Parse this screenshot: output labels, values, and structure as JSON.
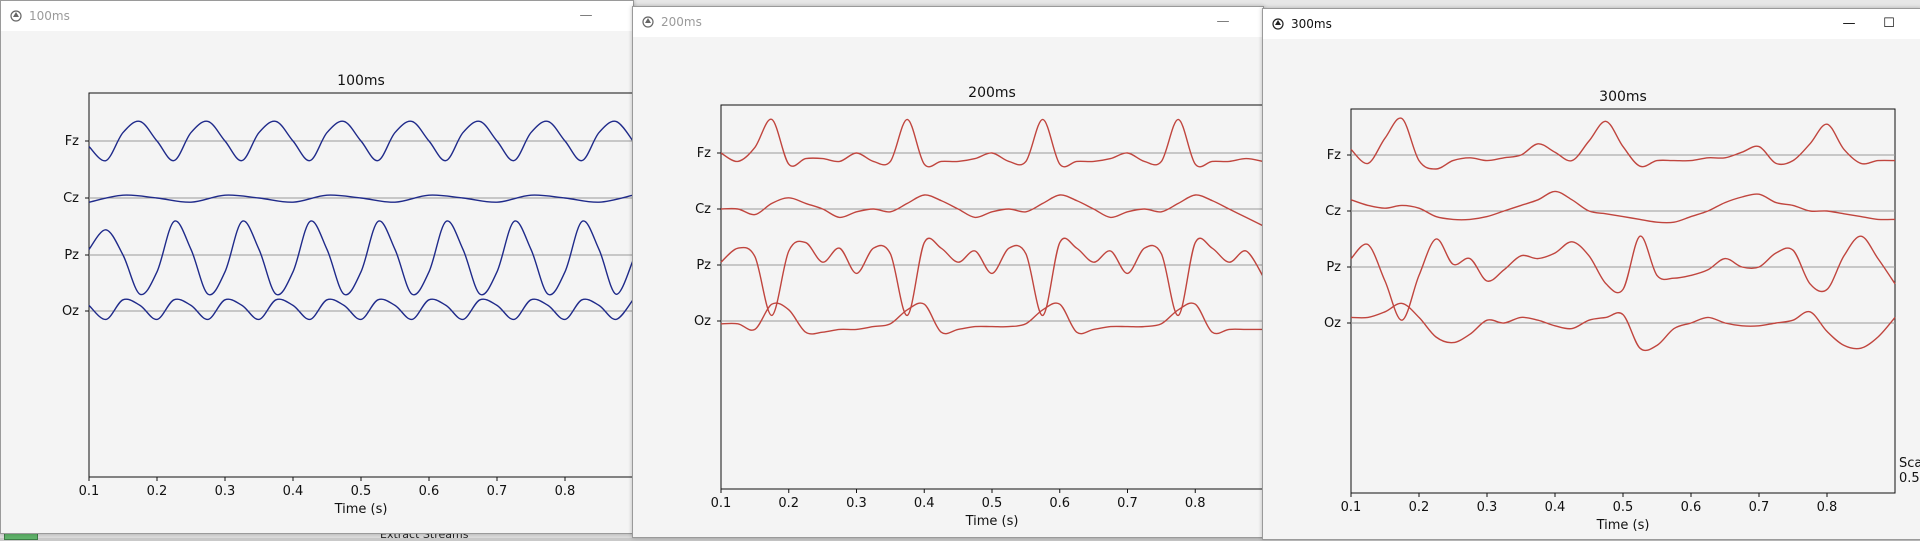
{
  "desktop": {
    "taskbar_text": "Extract Streams"
  },
  "windows": [
    {
      "title": "100ms",
      "chart_title": "100ms",
      "xlabel": "Time (s)",
      "channels": [
        "Fz",
        "Cz",
        "Pz",
        "Oz"
      ],
      "color": "#1f2a8a",
      "ticks": [
        "0.1",
        "0.2",
        "0.3",
        "0.4",
        "0.5",
        "0.6",
        "0.7",
        "0.8"
      ]
    },
    {
      "title": "200ms",
      "chart_title": "200ms",
      "xlabel": "Time (s)",
      "channels": [
        "Fz",
        "Cz",
        "Pz",
        "Oz"
      ],
      "color": "#c0453e",
      "ticks": [
        "0.1",
        "0.2",
        "0.3",
        "0.4",
        "0.5",
        "0.6",
        "0.7",
        "0.8"
      ]
    },
    {
      "title": "300ms",
      "chart_title": "300ms",
      "xlabel": "Time (s)",
      "channels": [
        "Fz",
        "Cz",
        "Pz",
        "Oz"
      ],
      "color": "#c0453e",
      "ticks": [
        "0.1",
        "0.2",
        "0.3",
        "0.4",
        "0.5",
        "0.6",
        "0.7",
        "0.8"
      ],
      "side_label": "Sca",
      "side_value": "0.5"
    }
  ],
  "chart_data": [
    {
      "type": "line",
      "title": "100ms",
      "xlabel": "Time (s)",
      "ylabel": "",
      "xlim": [
        0.1,
        0.9
      ],
      "y_categories": [
        "Fz",
        "Cz",
        "Pz",
        "Oz"
      ],
      "grid": true,
      "series": [
        {
          "x": [
            0.1,
            0.125,
            0.15,
            0.175,
            0.2,
            0.225,
            0.25,
            0.275,
            0.3,
            0.325,
            0.35,
            0.375,
            0.4,
            0.425,
            0.45,
            0.475,
            0.5,
            0.525,
            0.55,
            0.575,
            0.6,
            0.625,
            0.65,
            0.675,
            0.7,
            0.725,
            0.75,
            0.775,
            0.8,
            0.825,
            0.85,
            0.875,
            0.9
          ],
          "y": [
            -0.2,
            -0.7,
            0.3,
            0.7,
            0.0,
            -0.7,
            0.3,
            0.7,
            0.0,
            -0.7,
            0.3,
            0.7,
            0.0,
            -0.7,
            0.3,
            0.7,
            0.0,
            -0.7,
            0.3,
            0.7,
            0.0,
            -0.7,
            0.3,
            0.7,
            0.0,
            -0.7,
            0.3,
            0.7,
            0.0,
            -0.7,
            0.3,
            0.7,
            0.0
          ]
        },
        {
          "x": [
            0.1,
            0.15,
            0.2,
            0.25,
            0.3,
            0.35,
            0.4,
            0.45,
            0.5,
            0.55,
            0.6,
            0.65,
            0.7,
            0.75,
            0.8,
            0.85,
            0.9
          ],
          "y": [
            -0.15,
            0.1,
            0.0,
            -0.15,
            0.1,
            0.0,
            -0.15,
            0.1,
            0.0,
            -0.15,
            0.1,
            0.0,
            -0.15,
            0.1,
            0.0,
            -0.15,
            0.1
          ]
        },
        {
          "x": [
            0.1,
            0.125,
            0.15,
            0.175,
            0.2,
            0.225,
            0.25,
            0.275,
            0.3,
            0.325,
            0.35,
            0.375,
            0.4,
            0.425,
            0.45,
            0.475,
            0.5,
            0.525,
            0.55,
            0.575,
            0.6,
            0.625,
            0.65,
            0.675,
            0.7,
            0.725,
            0.75,
            0.775,
            0.8,
            0.825,
            0.85,
            0.875,
            0.9
          ],
          "y": [
            0.2,
            0.9,
            0.0,
            -1.4,
            -0.6,
            1.2,
            0.2,
            -1.4,
            -0.6,
            1.2,
            0.2,
            -1.4,
            -0.6,
            1.2,
            0.2,
            -1.4,
            -0.6,
            1.2,
            0.2,
            -1.4,
            -0.6,
            1.2,
            0.2,
            -1.4,
            -0.6,
            1.2,
            0.2,
            -1.4,
            -0.6,
            1.2,
            0.2,
            -1.4,
            -0.2
          ]
        },
        {
          "x": [
            0.1,
            0.125,
            0.15,
            0.175,
            0.2,
            0.225,
            0.25,
            0.275,
            0.3,
            0.325,
            0.35,
            0.375,
            0.4,
            0.425,
            0.45,
            0.475,
            0.5,
            0.525,
            0.55,
            0.575,
            0.6,
            0.625,
            0.65,
            0.675,
            0.7,
            0.725,
            0.75,
            0.775,
            0.8,
            0.825,
            0.85,
            0.875,
            0.9
          ],
          "y": [
            0.2,
            -0.3,
            0.4,
            0.2,
            -0.3,
            0.4,
            0.2,
            -0.3,
            0.4,
            0.2,
            -0.3,
            0.4,
            0.2,
            -0.3,
            0.4,
            0.2,
            -0.3,
            0.4,
            0.2,
            -0.3,
            0.4,
            0.2,
            -0.3,
            0.4,
            0.2,
            -0.3,
            0.4,
            0.2,
            -0.3,
            0.4,
            0.2,
            -0.3,
            0.4
          ]
        }
      ]
    },
    {
      "type": "line",
      "title": "200ms",
      "xlabel": "Time (s)",
      "ylabel": "",
      "xlim": [
        0.1,
        0.9
      ],
      "y_categories": [
        "Fz",
        "Cz",
        "Pz",
        "Oz"
      ],
      "grid": true,
      "series": [
        {
          "x": [
            0.1,
            0.125,
            0.15,
            0.175,
            0.2,
            0.225,
            0.25,
            0.275,
            0.3,
            0.325,
            0.35,
            0.375,
            0.4,
            0.425,
            0.45,
            0.475,
            0.5,
            0.525,
            0.55,
            0.575,
            0.6,
            0.625,
            0.65,
            0.675,
            0.7,
            0.725,
            0.75,
            0.775,
            0.8,
            0.825,
            0.85,
            0.875,
            0.9
          ],
          "y": [
            0.0,
            -0.3,
            0.2,
            1.2,
            -0.4,
            -0.2,
            -0.2,
            -0.3,
            0.0,
            -0.3,
            -0.3,
            1.2,
            -0.4,
            -0.3,
            -0.3,
            -0.2,
            0.0,
            -0.3,
            -0.3,
            1.2,
            -0.4,
            -0.3,
            -0.3,
            -0.2,
            0.0,
            -0.3,
            -0.3,
            1.2,
            -0.4,
            -0.3,
            -0.3,
            -0.2,
            -0.3
          ]
        },
        {
          "x": [
            0.1,
            0.125,
            0.15,
            0.175,
            0.2,
            0.225,
            0.25,
            0.275,
            0.3,
            0.325,
            0.35,
            0.375,
            0.4,
            0.425,
            0.45,
            0.475,
            0.5,
            0.525,
            0.55,
            0.575,
            0.6,
            0.625,
            0.65,
            0.675,
            0.7,
            0.725,
            0.75,
            0.775,
            0.8,
            0.825,
            0.85,
            0.875,
            0.9
          ],
          "y": [
            0.0,
            0.0,
            -0.2,
            0.2,
            0.4,
            0.2,
            0.0,
            -0.3,
            -0.1,
            0.0,
            -0.1,
            0.2,
            0.5,
            0.3,
            0.0,
            -0.3,
            -0.1,
            0.0,
            -0.1,
            0.2,
            0.5,
            0.3,
            0.0,
            -0.3,
            -0.1,
            0.0,
            -0.1,
            0.2,
            0.5,
            0.3,
            0.0,
            -0.3,
            -0.6
          ]
        },
        {
          "x": [
            0.1,
            0.125,
            0.15,
            0.175,
            0.2,
            0.225,
            0.25,
            0.275,
            0.3,
            0.325,
            0.35,
            0.375,
            0.4,
            0.425,
            0.45,
            0.475,
            0.5,
            0.525,
            0.55,
            0.575,
            0.6,
            0.625,
            0.65,
            0.675,
            0.7,
            0.725,
            0.75,
            0.775,
            0.8,
            0.825,
            0.85,
            0.875,
            0.9
          ],
          "y": [
            0.1,
            0.6,
            0.3,
            -1.8,
            0.5,
            0.8,
            0.1,
            0.6,
            -0.3,
            0.6,
            0.4,
            -1.8,
            0.8,
            0.6,
            0.1,
            0.5,
            -0.3,
            0.6,
            0.4,
            -1.8,
            0.8,
            0.6,
            0.1,
            0.5,
            -0.3,
            0.6,
            0.4,
            -1.8,
            0.8,
            0.6,
            0.1,
            0.5,
            -0.4
          ]
        },
        {
          "x": [
            0.1,
            0.125,
            0.15,
            0.175,
            0.2,
            0.225,
            0.25,
            0.275,
            0.3,
            0.325,
            0.35,
            0.375,
            0.4,
            0.425,
            0.45,
            0.475,
            0.5,
            0.525,
            0.55,
            0.575,
            0.6,
            0.625,
            0.65,
            0.675,
            0.7,
            0.725,
            0.75,
            0.775,
            0.8,
            0.825,
            0.85,
            0.875,
            0.9
          ],
          "y": [
            -0.1,
            -0.1,
            -0.3,
            0.6,
            0.4,
            -0.4,
            -0.4,
            -0.3,
            -0.3,
            -0.2,
            -0.1,
            0.4,
            0.6,
            -0.4,
            -0.3,
            -0.2,
            -0.2,
            -0.2,
            -0.1,
            0.4,
            0.6,
            -0.4,
            -0.3,
            -0.2,
            -0.2,
            -0.2,
            -0.1,
            0.4,
            0.6,
            -0.4,
            -0.3,
            -0.3,
            -0.3
          ]
        }
      ]
    },
    {
      "type": "line",
      "title": "300ms",
      "xlabel": "Time (s)",
      "ylabel": "",
      "xlim": [
        0.1,
        0.9
      ],
      "y_categories": [
        "Fz",
        "Cz",
        "Pz",
        "Oz"
      ],
      "grid": true,
      "series": [
        {
          "x": [
            0.1,
            0.125,
            0.15,
            0.175,
            0.2,
            0.225,
            0.25,
            0.275,
            0.3,
            0.325,
            0.35,
            0.375,
            0.4,
            0.425,
            0.45,
            0.475,
            0.5,
            0.525,
            0.55,
            0.575,
            0.6,
            0.625,
            0.65,
            0.675,
            0.7,
            0.725,
            0.75,
            0.775,
            0.8,
            0.825,
            0.85,
            0.875,
            0.9
          ],
          "y": [
            0.2,
            -0.3,
            0.6,
            1.3,
            -0.2,
            -0.5,
            -0.2,
            -0.1,
            -0.2,
            -0.1,
            0.0,
            0.4,
            0.1,
            -0.2,
            0.5,
            1.2,
            0.3,
            -0.4,
            -0.2,
            -0.2,
            -0.2,
            -0.1,
            -0.1,
            0.1,
            0.3,
            -0.3,
            -0.2,
            0.4,
            1.1,
            0.2,
            -0.3,
            -0.2,
            -0.2
          ]
        },
        {
          "x": [
            0.1,
            0.125,
            0.15,
            0.175,
            0.2,
            0.225,
            0.25,
            0.275,
            0.3,
            0.325,
            0.35,
            0.375,
            0.4,
            0.425,
            0.45,
            0.475,
            0.5,
            0.525,
            0.55,
            0.575,
            0.6,
            0.625,
            0.65,
            0.675,
            0.7,
            0.725,
            0.75,
            0.775,
            0.8,
            0.825,
            0.85,
            0.875,
            0.9
          ],
          "y": [
            0.4,
            0.2,
            0.1,
            0.2,
            0.1,
            -0.2,
            -0.3,
            -0.3,
            -0.2,
            0.0,
            0.2,
            0.4,
            0.7,
            0.4,
            0.0,
            -0.1,
            -0.2,
            -0.3,
            -0.4,
            -0.4,
            -0.2,
            0.0,
            0.3,
            0.5,
            0.6,
            0.3,
            0.2,
            0.0,
            0.0,
            -0.1,
            -0.2,
            -0.3,
            -0.3
          ]
        },
        {
          "x": [
            0.1,
            0.125,
            0.15,
            0.175,
            0.2,
            0.225,
            0.25,
            0.275,
            0.3,
            0.325,
            0.35,
            0.375,
            0.4,
            0.425,
            0.45,
            0.475,
            0.5,
            0.525,
            0.55,
            0.575,
            0.6,
            0.625,
            0.65,
            0.675,
            0.7,
            0.725,
            0.75,
            0.775,
            0.8,
            0.825,
            0.85,
            0.875,
            0.9
          ],
          "y": [
            0.3,
            0.8,
            -0.5,
            -1.9,
            -0.3,
            1.0,
            0.1,
            0.3,
            -0.5,
            -0.1,
            0.4,
            0.3,
            0.5,
            0.9,
            0.4,
            -0.6,
            -0.8,
            1.1,
            -0.3,
            -0.4,
            -0.3,
            -0.1,
            0.3,
            0.0,
            0.0,
            0.5,
            0.6,
            -0.6,
            -0.8,
            0.4,
            1.1,
            0.3,
            -0.6
          ]
        },
        {
          "x": [
            0.1,
            0.125,
            0.15,
            0.175,
            0.2,
            0.225,
            0.25,
            0.275,
            0.3,
            0.325,
            0.35,
            0.375,
            0.4,
            0.425,
            0.45,
            0.475,
            0.5,
            0.525,
            0.55,
            0.575,
            0.6,
            0.625,
            0.65,
            0.675,
            0.7,
            0.725,
            0.75,
            0.775,
            0.8,
            0.825,
            0.85,
            0.875,
            0.9
          ],
          "y": [
            0.2,
            0.2,
            0.4,
            0.7,
            0.2,
            -0.5,
            -0.7,
            -0.4,
            0.1,
            0.0,
            0.2,
            0.1,
            -0.1,
            -0.2,
            0.1,
            0.2,
            0.3,
            -0.9,
            -0.8,
            -0.2,
            0.0,
            0.2,
            0.0,
            -0.1,
            -0.1,
            0.0,
            0.1,
            0.4,
            -0.3,
            -0.8,
            -0.9,
            -0.5,
            0.2
          ]
        }
      ]
    }
  ]
}
